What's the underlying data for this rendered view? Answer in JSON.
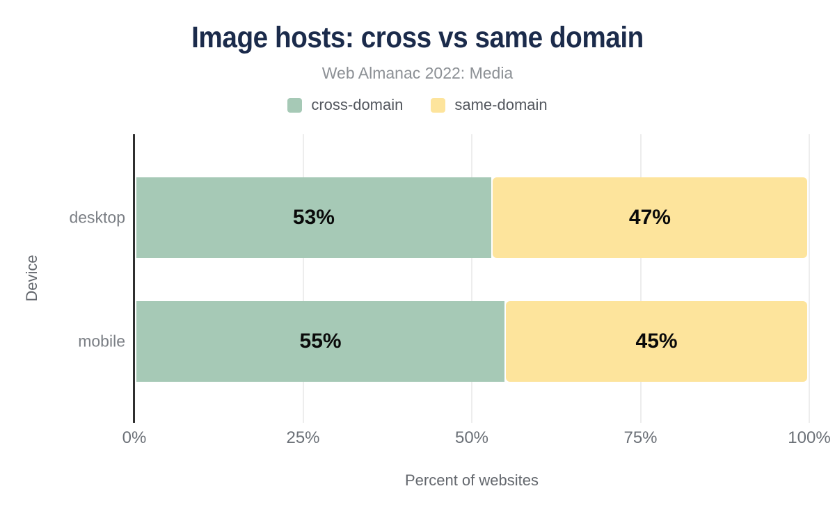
{
  "chart_data": {
    "type": "bar",
    "orientation": "horizontal",
    "stacked": true,
    "title": "Image hosts: cross vs same domain",
    "subtitle": "Web Almanac 2022: Media",
    "xlabel": "Percent of websites",
    "ylabel": "Device",
    "categories": [
      "desktop",
      "mobile"
    ],
    "series": [
      {
        "name": "cross-domain",
        "color": "#a6c9b6",
        "values": [
          53,
          55
        ],
        "labels": [
          "53%",
          "55%"
        ]
      },
      {
        "name": "same-domain",
        "color": "#fde49c",
        "values": [
          47,
          45
        ],
        "labels": [
          "47%",
          "45%"
        ]
      }
    ],
    "xlim": [
      0,
      100
    ],
    "xticks": [
      0,
      25,
      50,
      75,
      100
    ],
    "xtick_labels": [
      "0%",
      "25%",
      "50%",
      "75%",
      "100%"
    ],
    "grid": true,
    "legend_position": "top",
    "data_label_format": "{value}%"
  },
  "colors": {
    "title": "#1b2b4b",
    "subtitle": "#8c9095",
    "legend_text": "#53575e",
    "row_label": "#7b7f85",
    "tick_label": "#6b7077",
    "axis_title": "#63676d",
    "axis_line": "#2f2f2f",
    "gridline": "#ededed",
    "data_label": "#0a0a0a",
    "background": "#ffffff"
  }
}
